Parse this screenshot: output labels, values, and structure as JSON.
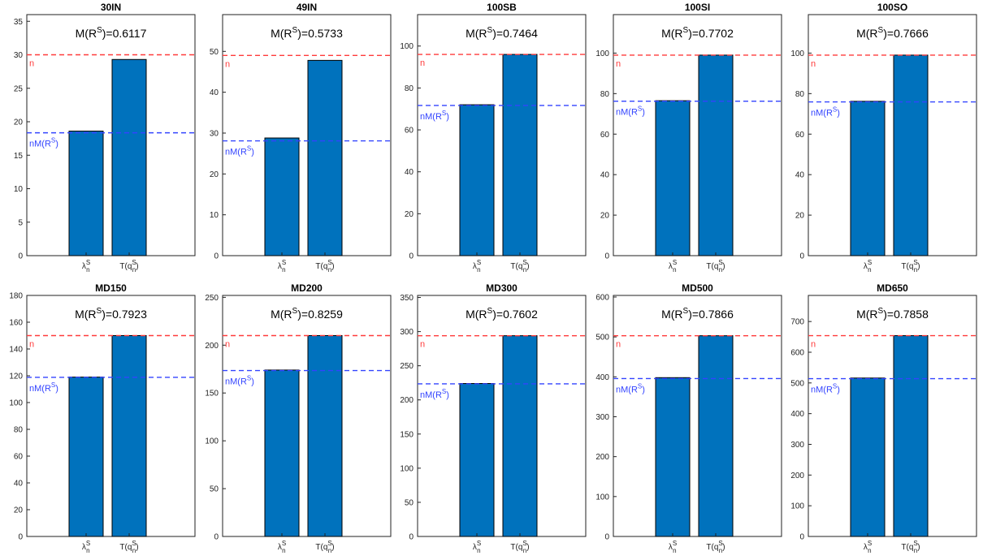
{
  "colors": {
    "bar": "#0072BD",
    "n_line": "#FF3B3B",
    "nm_line": "#3344FF",
    "axes": "#222222"
  },
  "labels": {
    "n": "n",
    "nm": "nM(R",
    "s": "S",
    "nm_close": ")",
    "metric": "M(R",
    "metric_eq": ")=",
    "lambda": "λ",
    "sub_n": "n",
    "t_open": "T(q",
    "t_close": ")"
  },
  "chart_data": [
    {
      "type": "bar",
      "title": "30IN",
      "metric": "0.6117",
      "ylim": [
        0,
        36
      ],
      "yticks": [
        0,
        5,
        10,
        15,
        20,
        25,
        30,
        35
      ],
      "values": [
        18.6,
        29.3
      ],
      "n": 30,
      "nm": 18.35
    },
    {
      "type": "bar",
      "title": "49IN",
      "metric": "0.5733",
      "ylim": [
        0,
        59
      ],
      "yticks": [
        0,
        10,
        20,
        30,
        40,
        50
      ],
      "values": [
        28.8,
        47.8
      ],
      "n": 49,
      "nm": 28.09
    },
    {
      "type": "bar",
      "title": "100SB",
      "metric": "0.7464",
      "ylim": [
        0,
        115
      ],
      "yticks": [
        0,
        20,
        40,
        60,
        80,
        100
      ],
      "values": [
        72,
        96
      ],
      "n": 96,
      "nm": 71.65
    },
    {
      "type": "bar",
      "title": "100SI",
      "metric": "0.7702",
      "ylim": [
        0,
        119
      ],
      "yticks": [
        0,
        20,
        40,
        60,
        80,
        100
      ],
      "values": [
        76.5,
        99
      ],
      "n": 99,
      "nm": 76.25
    },
    {
      "type": "bar",
      "title": "100SO",
      "metric": "0.7666",
      "ylim": [
        0,
        119
      ],
      "yticks": [
        0,
        20,
        40,
        60,
        80,
        100
      ],
      "values": [
        76.2,
        99
      ],
      "n": 99,
      "nm": 75.89
    },
    {
      "type": "bar",
      "title": "MD150",
      "metric": "0.7923",
      "ylim": [
        0,
        180
      ],
      "yticks": [
        0,
        20,
        40,
        60,
        80,
        100,
        120,
        140,
        160,
        180
      ],
      "values": [
        119,
        150
      ],
      "n": 150,
      "nm": 118.85
    },
    {
      "type": "bar",
      "title": "MD200",
      "metric": "0.8259",
      "ylim": [
        0,
        252
      ],
      "yticks": [
        0,
        50,
        100,
        150,
        200,
        250
      ],
      "values": [
        174,
        210
      ],
      "n": 210,
      "nm": 173.44
    },
    {
      "type": "bar",
      "title": "MD300",
      "metric": "0.7602",
      "ylim": [
        0,
        353
      ],
      "yticks": [
        0,
        50,
        100,
        150,
        200,
        250,
        300,
        350
      ],
      "values": [
        224,
        294
      ],
      "n": 294,
      "nm": 223.5
    },
    {
      "type": "bar",
      "title": "MD500",
      "metric": "0.7866",
      "ylim": [
        0,
        604
      ],
      "yticks": [
        0,
        100,
        200,
        300,
        400,
        500,
        600
      ],
      "values": [
        398,
        503
      ],
      "n": 503,
      "nm": 395.66
    },
    {
      "type": "bar",
      "title": "MD650",
      "metric": "0.7858",
      "ylim": [
        0,
        785
      ],
      "yticks": [
        0,
        100,
        200,
        300,
        400,
        500,
        600,
        700
      ],
      "values": [
        516,
        654
      ],
      "n": 654,
      "nm": 513.91
    }
  ]
}
